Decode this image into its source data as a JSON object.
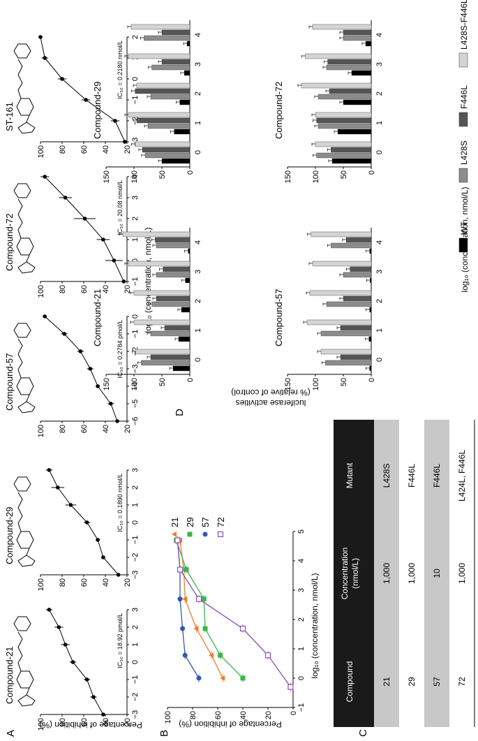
{
  "figure": {
    "panel_labels": {
      "A": "A",
      "B": "B",
      "C": "C",
      "D": "D"
    },
    "panel_a": {
      "ylabel": "Percentage of inhibition (%)",
      "xlabel": "log₁₀ (concentration, nmol/L)",
      "charts": [
        {
          "name": "Compound-21",
          "ic50": "IC₅₀ = 18.92 pmol/L",
          "xlim": [
            -3,
            3
          ],
          "ylim": [
            20,
            100
          ],
          "xticks": [
            -3,
            -2,
            -1,
            0,
            1,
            2,
            3
          ],
          "points": [
            [
              -3,
              42
            ],
            [
              -2,
              51
            ],
            [
              -1,
              57
            ],
            [
              0,
              70
            ],
            [
              1,
              77
            ],
            [
              2,
              83
            ],
            [
              3,
              92
            ]
          ],
          "err": [
            3,
            3,
            3,
            3,
            4,
            4,
            3
          ]
        },
        {
          "name": "Compound-29",
          "ic50": "IC₅₀ = 0.1890 nmol/L",
          "xlim": [
            -3,
            3
          ],
          "ylim": [
            20,
            100
          ],
          "xticks": [
            -3,
            -2,
            -1,
            0,
            1,
            2,
            3
          ],
          "points": [
            [
              -3,
              28
            ],
            [
              -2,
              42
            ],
            [
              -1,
              47
            ],
            [
              0,
              57
            ],
            [
              1,
              72
            ],
            [
              2,
              84
            ],
            [
              3,
              92
            ]
          ],
          "err": [
            2,
            2,
            2,
            3,
            5,
            6,
            3
          ]
        },
        {
          "name": "Compound-57",
          "ic50": "IC₅₀ = 0.2784 pmol/L",
          "xlim": [
            -6,
            0
          ],
          "ylim": [
            20,
            100
          ],
          "xticks": [
            -6,
            -5,
            -4,
            -3,
            -2,
            -1,
            0
          ],
          "points": [
            [
              -6,
              29
            ],
            [
              -5,
              35
            ],
            [
              -4,
              47
            ],
            [
              -3,
              54
            ],
            [
              -2,
              63
            ],
            [
              -1,
              78
            ],
            [
              0,
              96
            ]
          ],
          "err": [
            2,
            3,
            2,
            3,
            3,
            3,
            2
          ]
        },
        {
          "name": "Compound-72",
          "ic50": "IC₅₀ = 20.08 nmol/L",
          "xlim": [
            -1,
            4
          ],
          "ylim": [
            20,
            100
          ],
          "xticks": [
            -1,
            0,
            1,
            2,
            3,
            4
          ],
          "points": [
            [
              -1,
              23
            ],
            [
              0,
              32
            ],
            [
              1,
              42
            ],
            [
              2,
              59
            ],
            [
              3,
              77
            ],
            [
              4,
              96
            ]
          ],
          "err": [
            3,
            8,
            6,
            10,
            6,
            4
          ]
        },
        {
          "name": "ST-161",
          "ic50": "IC₅₀ = 0.2180 nmol/L",
          "xlim": [
            -3,
            2
          ],
          "ylim": [
            20,
            100
          ],
          "xticks": [
            -3,
            -2,
            -1,
            0,
            1,
            2
          ],
          "points": [
            [
              -3,
              22
            ],
            [
              -2,
              31
            ],
            [
              -1,
              58
            ],
            [
              0,
              80
            ],
            [
              1,
              96
            ],
            [
              2,
              100
            ]
          ],
          "err": [
            2,
            4,
            4,
            4,
            3,
            2
          ]
        }
      ]
    },
    "panel_b": {
      "ylabel": "Percentage of inhibition (%)",
      "xlabel": "log₁₀ (concentration, nmol/L)",
      "xlim": [
        -1,
        5
      ],
      "ylim": [
        0,
        100
      ],
      "xticks": [
        -1,
        0,
        1,
        2,
        3,
        4,
        5
      ],
      "yticks": [
        0,
        20,
        40,
        60,
        80,
        100
      ],
      "series": [
        {
          "name": "21",
          "color": "#f07c2a",
          "marker": "triangle",
          "points": [
            [
              0,
              56
            ],
            [
              0.78,
              65
            ],
            [
              1.69,
              77
            ],
            [
              2.7,
              86
            ],
            [
              3.7,
              87
            ],
            [
              4.7,
              90
            ]
          ]
        },
        {
          "name": "29",
          "color": "#3fb34a",
          "marker": "square",
          "points": [
            [
              0,
              40
            ],
            [
              0.78,
              58
            ],
            [
              1.69,
              70
            ],
            [
              2.7,
              71
            ],
            [
              3.7,
              85
            ],
            [
              4.7,
              93
            ]
          ]
        },
        {
          "name": "57",
          "color": "#3456b0",
          "marker": "circle",
          "points": [
            [
              0,
              75
            ],
            [
              0.78,
              86
            ],
            [
              1.69,
              88
            ],
            [
              2.7,
              90
            ],
            [
              3.7,
              90
            ],
            [
              4.7,
              92
            ]
          ]
        },
        {
          "name": "72",
          "color": "#8a4fb0",
          "marker": "open-square",
          "points": [
            [
              -0.3,
              2
            ],
            [
              0.78,
              20
            ],
            [
              1.69,
              40
            ],
            [
              2.7,
              75
            ],
            [
              3.7,
              90
            ],
            [
              4.7,
              92
            ]
          ]
        }
      ]
    },
    "panel_c": {
      "headers": [
        "Compound",
        "Concentration\n(nmol/L)",
        "Mutant"
      ],
      "rows": [
        [
          "21",
          "1,000",
          "L428S"
        ],
        [
          "29",
          "1,000",
          "F446L"
        ],
        [
          "57",
          "10",
          "F446L"
        ],
        [
          "72",
          "1,000",
          "L424L, F446L"
        ]
      ]
    },
    "panel_d": {
      "ylabel_line1": "luciferase activities",
      "ylabel_line2": "(% relative of control)",
      "xlabel": "log₁₀ (concentration, nmol/L)",
      "ylim": [
        0,
        150
      ],
      "yticks": [
        0,
        50,
        100,
        150
      ],
      "categories": [
        "0",
        "1",
        "2",
        "3",
        "4"
      ],
      "legend": [
        {
          "label": "WT",
          "color": "#000000"
        },
        {
          "label": "L428S",
          "color": "#8c8c8c"
        },
        {
          "label": "F446L",
          "color": "#555555"
        },
        {
          "label": "L428S-F446L",
          "color": "#d4d4d4"
        }
      ],
      "charts": [
        {
          "name": "Compound-21",
          "values": [
            [
              30,
              87,
              70,
              97
            ],
            [
              20,
              70,
              45,
              100
            ],
            [
              15,
              68,
              60,
              100
            ],
            [
              8,
              60,
              48,
              110
            ],
            [
              3,
              60,
              62,
              120
            ]
          ]
        },
        {
          "name": "Compound-29",
          "values": [
            [
              50,
              80,
              85,
              98
            ],
            [
              28,
              75,
              95,
              110
            ],
            [
              18,
              70,
              98,
              95
            ],
            [
              10,
              68,
              50,
              110
            ],
            [
              5,
              82,
              50,
              105
            ]
          ]
        },
        {
          "name": "Compound-57",
          "values": [
            [
              3,
              82,
              55,
              90
            ],
            [
              4,
              90,
              55,
              115
            ],
            [
              3,
              80,
              50,
              110
            ],
            [
              2,
              50,
              38,
              105
            ],
            [
              3,
              72,
              45,
              108
            ]
          ]
        },
        {
          "name": "Compound-72",
          "values": [
            [
              70,
              98,
              72,
              100
            ],
            [
              60,
              95,
              98,
              100
            ],
            [
              50,
              95,
              75,
              125
            ],
            [
              35,
              80,
              78,
              118
            ],
            [
              10,
              50,
              50,
              105
            ]
          ]
        }
      ]
    }
  }
}
